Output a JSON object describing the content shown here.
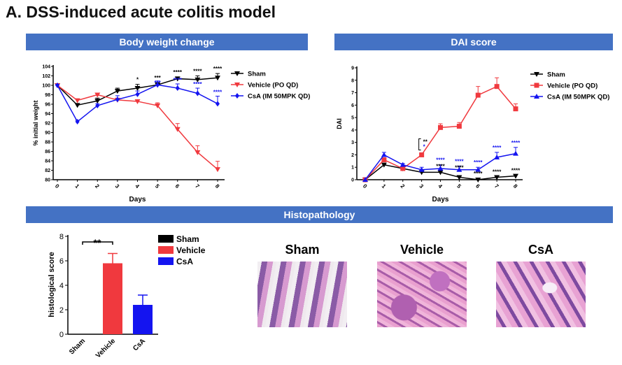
{
  "title": "A. DSS-induced acute colitis model",
  "banners": {
    "bw": "Body weight change",
    "dai": "DAI score",
    "histo": "Histopathology"
  },
  "histo_images": [
    {
      "label": "Sham"
    },
    {
      "label": "Vehicle"
    },
    {
      "label": "CsA"
    }
  ],
  "colors": {
    "sham": "#000000",
    "vehicle": "#f0393e",
    "csa": "#1414f0",
    "banner": "#4472c4"
  },
  "chart_data": [
    {
      "type": "line",
      "title": "Body weight change",
      "xlabel": "Days",
      "ylabel": "% initial weight",
      "x": [
        0,
        1,
        2,
        3,
        4,
        5,
        6,
        7,
        8
      ],
      "ylim": [
        80,
        104
      ],
      "yticks": [
        80,
        82,
        84,
        86,
        88,
        90,
        92,
        94,
        96,
        98,
        100,
        102,
        104
      ],
      "series": [
        {
          "name": "Sham",
          "color": "#000000",
          "marker": "tri-down",
          "values": [
            100,
            95.8,
            96.7,
            98.8,
            99.4,
            100.1,
            101.4,
            101.2,
            101.6
          ],
          "err": [
            0.3,
            0.3,
            0.6,
            0.6,
            0.8,
            0.5,
            0.4,
            0.8,
            0.9
          ]
        },
        {
          "name": "Vehicle (PO QD)",
          "color": "#f0393e",
          "marker": "tri-down",
          "values": [
            100,
            96.8,
            98.0,
            96.9,
            96.6,
            95.7,
            90.7,
            85.8,
            82.2
          ],
          "err": [
            0.3,
            0.3,
            0.3,
            0.3,
            0.2,
            0.6,
            1.2,
            1.4,
            1.7
          ]
        },
        {
          "name": "CsA (IM 50MPK QD)",
          "color": "#1414f0",
          "marker": "diamond",
          "values": [
            100,
            92.3,
            95.7,
            97.0,
            98.1,
            100.1,
            99.4,
            98.3,
            96.1
          ],
          "err": [
            0.2,
            0.3,
            0.4,
            0.8,
            0.7,
            0.8,
            0.9,
            1.1,
            1.6
          ]
        }
      ],
      "annotations": [
        {
          "day": 4,
          "sham": "*",
          "csa": ""
        },
        {
          "day": 5,
          "sham": "***",
          "csa": "***"
        },
        {
          "day": 6,
          "sham": "****",
          "csa": "****"
        },
        {
          "day": 7,
          "sham": "****",
          "csa": "****"
        },
        {
          "day": 8,
          "sham": "****",
          "csa": "****"
        }
      ],
      "legend": "right"
    },
    {
      "type": "line",
      "title": "DAI score",
      "xlabel": "Days",
      "ylabel": "DAI",
      "x": [
        0,
        1,
        2,
        3,
        4,
        5,
        6,
        7,
        8
      ],
      "ylim": [
        0,
        9
      ],
      "yticks": [
        0,
        1,
        2,
        3,
        4,
        5,
        6,
        7,
        8,
        9
      ],
      "series": [
        {
          "name": "Sham",
          "color": "#000000",
          "marker": "tri-down",
          "values": [
            0,
            1.2,
            0.9,
            0.6,
            0.6,
            0.2,
            0,
            0.2,
            0.3
          ],
          "err": [
            0,
            0.05,
            0.05,
            0.05,
            0.05,
            0.05,
            0,
            0.05,
            0.1
          ]
        },
        {
          "name": "Vehicle (PO QD)",
          "color": "#f0393e",
          "marker": "square",
          "values": [
            0,
            1.6,
            0.9,
            2.0,
            4.2,
            4.3,
            6.8,
            7.5,
            5.7
          ],
          "err": [
            0,
            0.1,
            0.1,
            0.1,
            0.3,
            0.3,
            0.7,
            0.7,
            0.4
          ]
        },
        {
          "name": "CsA (IM 50MPK QD)",
          "color": "#1414f0",
          "marker": "tri-up",
          "values": [
            0,
            2.0,
            1.2,
            0.8,
            0.9,
            0.8,
            0.8,
            1.8,
            2.1
          ],
          "err": [
            0,
            0.2,
            0.1,
            0.2,
            0.3,
            0.3,
            0.2,
            0.4,
            0.5
          ]
        }
      ],
      "annotations": [
        {
          "day": 3,
          "sham": "**",
          "csa": "*",
          "bracket": true
        },
        {
          "day": 4,
          "sham": "****",
          "csa": "****"
        },
        {
          "day": 5,
          "sham": "****",
          "csa": "****"
        },
        {
          "day": 6,
          "sham": "****",
          "csa": "****"
        },
        {
          "day": 7,
          "sham": "****",
          "csa": "****"
        },
        {
          "day": 8,
          "sham": "****",
          "csa": "****"
        }
      ],
      "legend": "right"
    },
    {
      "type": "bar",
      "ylabel": "histological score",
      "categories": [
        "Sham",
        "Vehicle",
        "CsA"
      ],
      "values": [
        0,
        5.8,
        2.4
      ],
      "err": [
        0,
        0.8,
        0.8
      ],
      "colors": [
        "#000000",
        "#f0393e",
        "#1414f0"
      ],
      "ylim": [
        0,
        8
      ],
      "yticks": [
        0,
        2,
        4,
        6,
        8
      ],
      "significance": {
        "between": [
          "Sham",
          "Vehicle"
        ],
        "label": "**"
      },
      "legend": "right"
    }
  ]
}
